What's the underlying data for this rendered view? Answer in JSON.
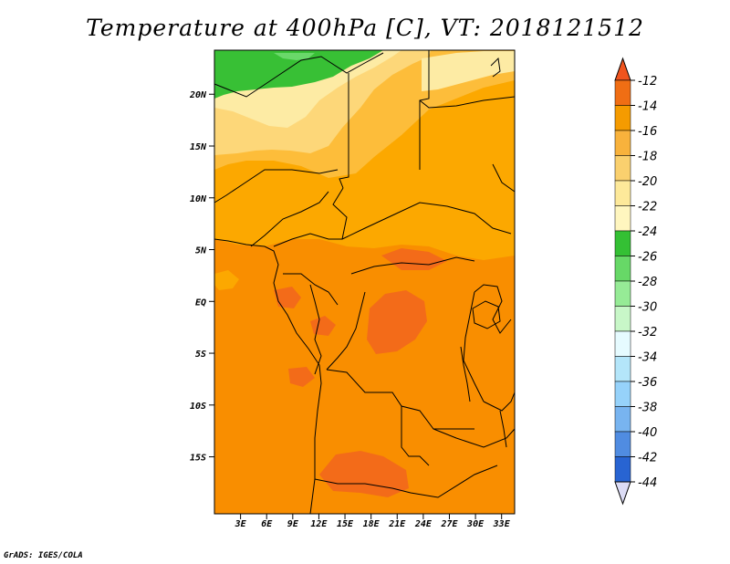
{
  "title": "Temperature at 400hPa [C], VT: 2018121512",
  "credit": "GrADS: IGES/COLA",
  "map": {
    "lon_labels": [
      "3E",
      "6E",
      "9E",
      "12E",
      "15E",
      "18E",
      "21E",
      "24E",
      "27E",
      "30E",
      "33E"
    ],
    "lat_labels": [
      "20N",
      "15N",
      "10N",
      "5N",
      "EQ",
      "5S",
      "10S",
      "15S"
    ]
  },
  "colorbar": {
    "levels": [
      "-12",
      "-14",
      "-16",
      "-18",
      "-20",
      "-22",
      "-24",
      "-26",
      "-28",
      "-30",
      "-32",
      "-34",
      "-36",
      "-38",
      "-40",
      "-42",
      "-44"
    ],
    "colors": [
      "#f0541e",
      "#f06e14",
      "#f59b00",
      "#f8b23c",
      "#fad06e",
      "#fde99a",
      "#fff6bf",
      "#34c034",
      "#67d867",
      "#96eb96",
      "#c8f7c8",
      "#e6fbff",
      "#b4e6fa",
      "#96d2fa",
      "#78b4f0",
      "#508ce1",
      "#2864d2",
      "#1e46b4",
      "#0a2c96",
      "#d3d9f7"
    ],
    "top_color": "#f0541e",
    "bottom_color": "#dcdcf5"
  },
  "palette": {
    "t_14": "#f98e00",
    "t_16": "#fca800",
    "t_18": "#fdbd3a",
    "t_20": "#fdd779",
    "t_22": "#fdeba4",
    "t_12": "#f36b19",
    "t_24": "#38c035",
    "t_26": "#6ad86a"
  }
}
